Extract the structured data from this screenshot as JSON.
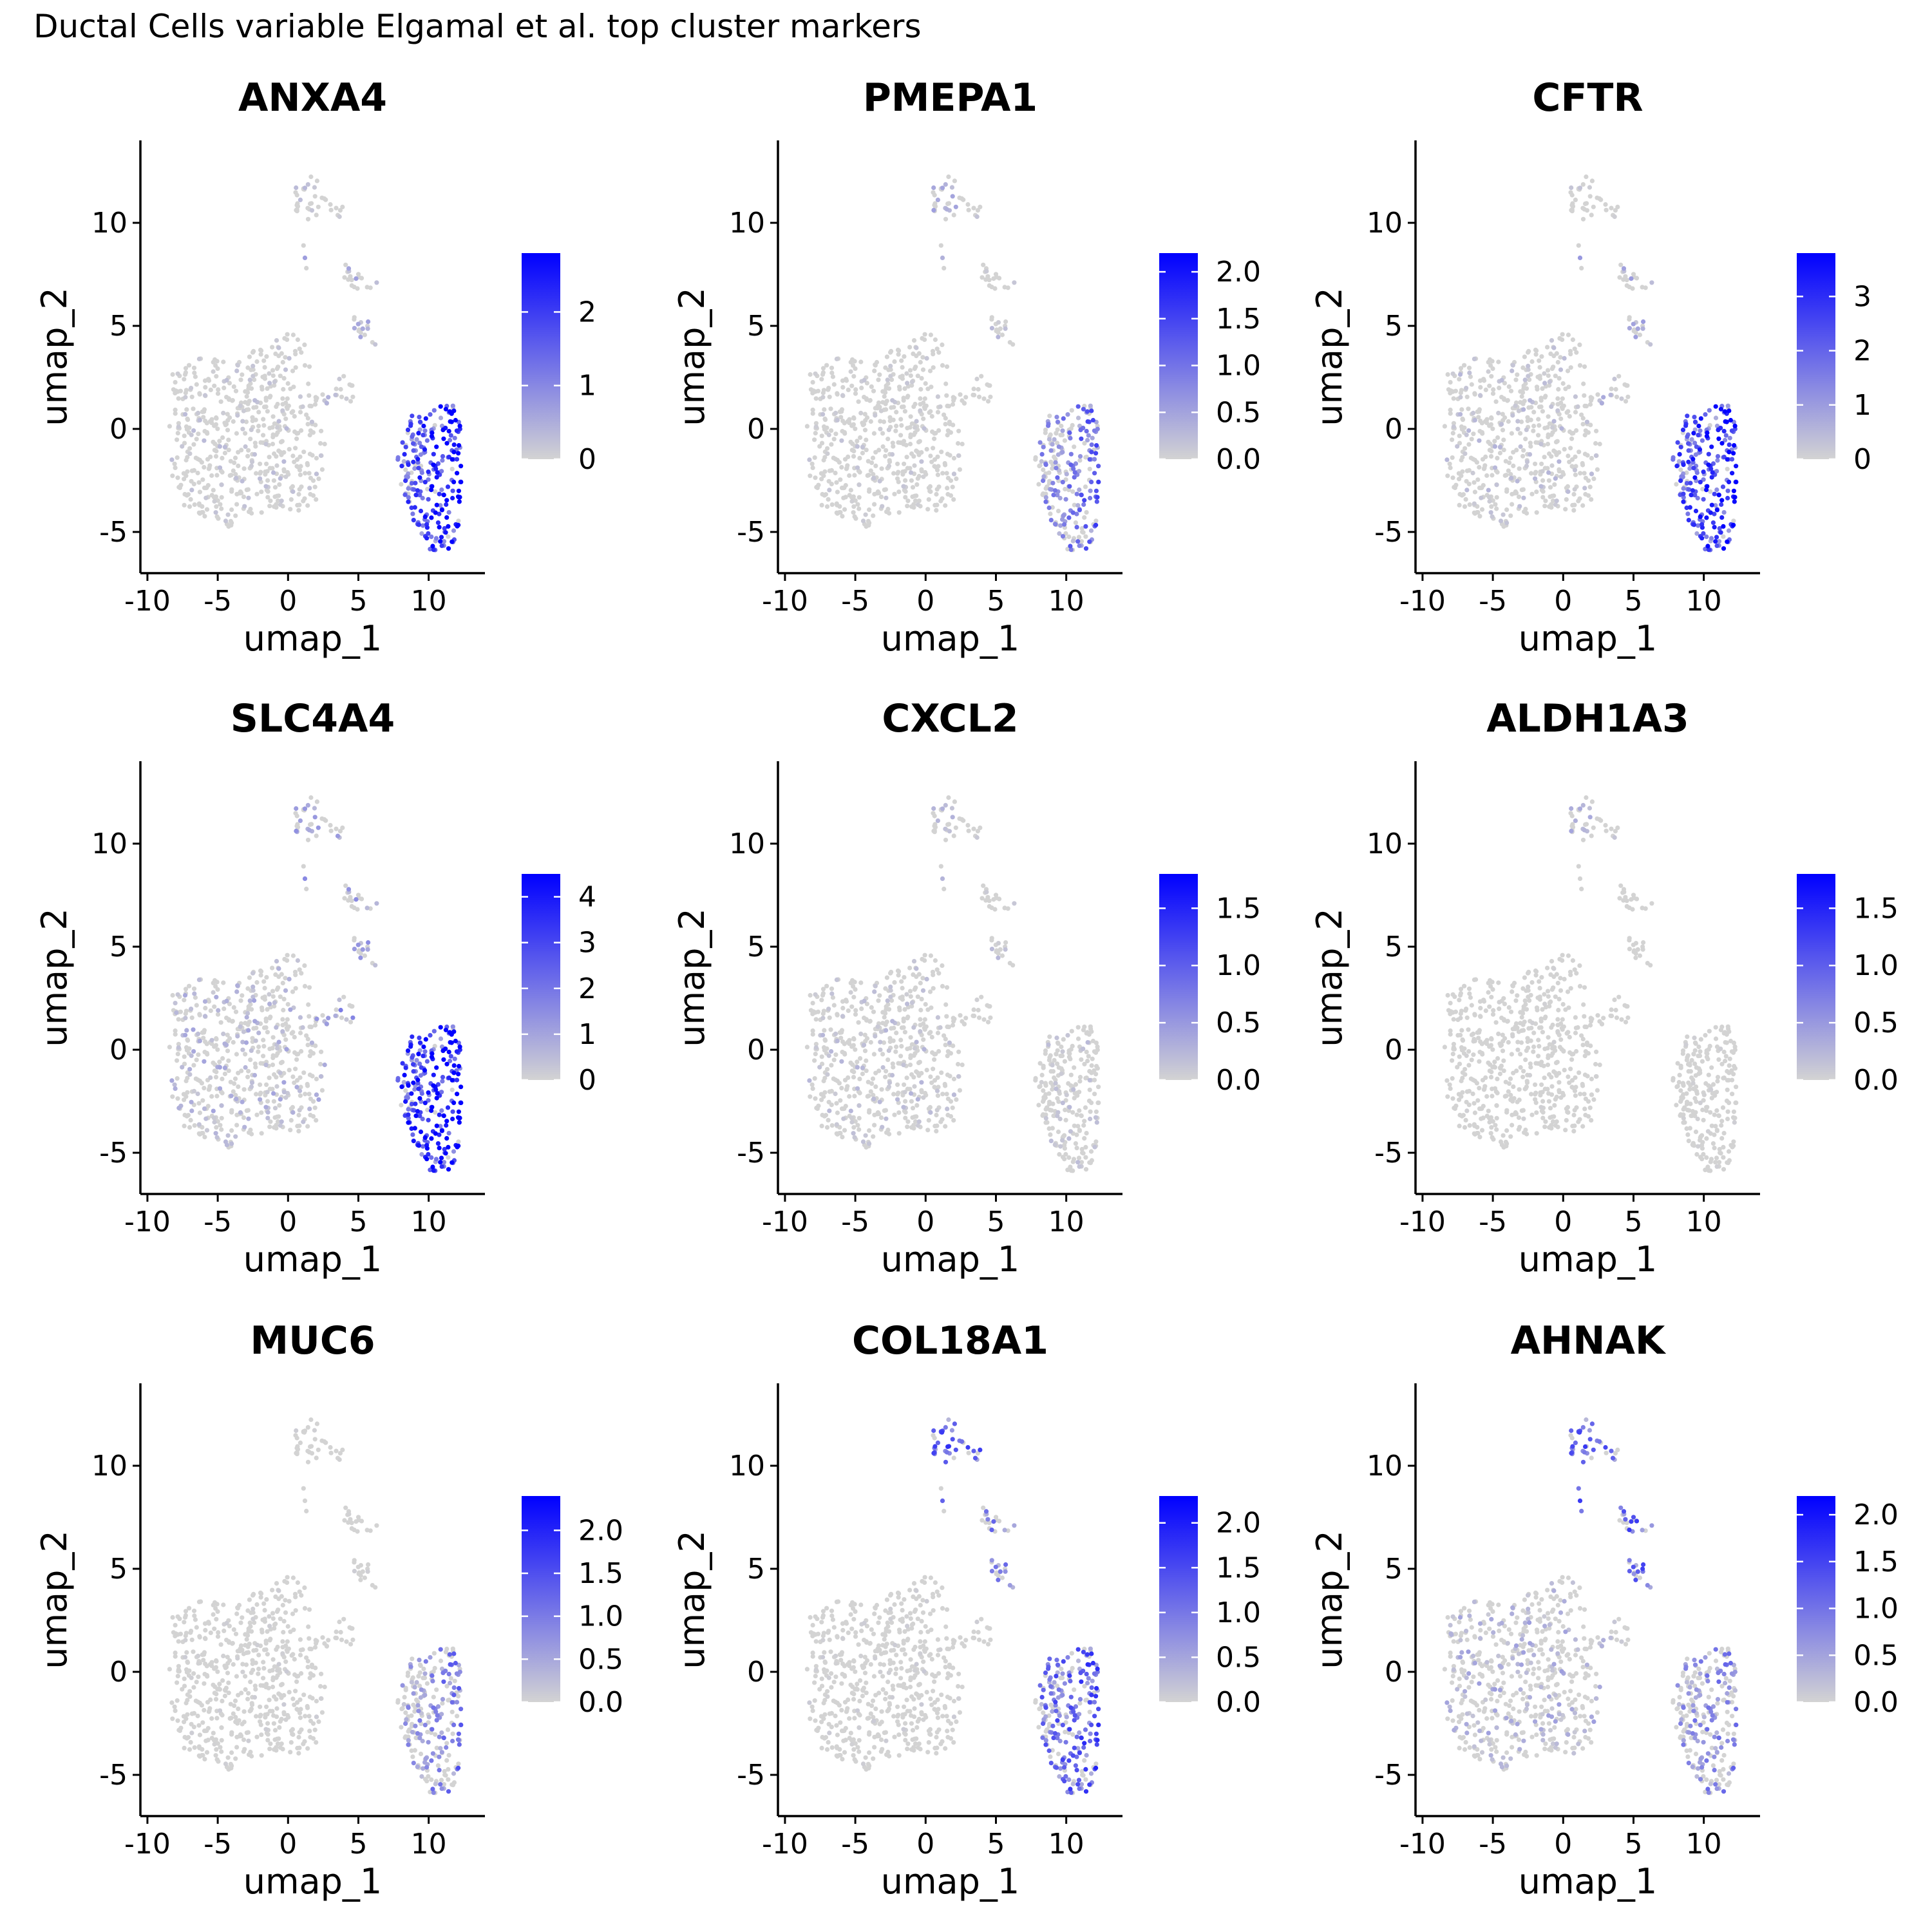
{
  "figure_title": "Ductal Cells variable Elgamal et al. top cluster markers",
  "chart_data": [
    {
      "type": "scatter",
      "title": "ANXA4",
      "xlabel": "umap_1",
      "ylabel": "umap_2",
      "xlim": [
        -10.5,
        14
      ],
      "ylim": [
        -7,
        14
      ],
      "xticks": [
        -10,
        -5,
        0,
        5,
        10
      ],
      "yticks": [
        -5,
        0,
        5,
        10
      ],
      "colorbar": {
        "min": 0,
        "max": 2.8,
        "ticks": [
          "0",
          "1",
          "2"
        ],
        "tickvalues": [
          0,
          1,
          2
        ],
        "low_color": "#d3d3d3",
        "high_color": "#0000ff"
      },
      "pattern": {
        "main": 0.18,
        "stalk": 0.35,
        "top": 0.25,
        "small": 0.4,
        "right": 1.35,
        "right_grad": 1.0
      }
    },
    {
      "type": "scatter",
      "title": "PMEPA1",
      "xlabel": "umap_1",
      "ylabel": "umap_2",
      "xlim": [
        -10.5,
        14
      ],
      "ylim": [
        -7,
        14
      ],
      "xticks": [
        -10,
        -5,
        0,
        5,
        10
      ],
      "yticks": [
        -5,
        0,
        5,
        10
      ],
      "colorbar": {
        "min": 0,
        "max": 2.2,
        "ticks": [
          "0.0",
          "0.5",
          "1.0",
          "1.5",
          "2.0"
        ],
        "tickvalues": [
          0,
          0.5,
          1,
          1.5,
          2
        ],
        "low_color": "#d3d3d3",
        "high_color": "#0000ff"
      },
      "pattern": {
        "main": 0.1,
        "stalk": 0.1,
        "top": 0.35,
        "small": 0.2,
        "right": 0.6,
        "right_grad": 0.3
      }
    },
    {
      "type": "scatter",
      "title": "CFTR",
      "xlabel": "umap_1",
      "ylabel": "umap_2",
      "xlim": [
        -10.5,
        14
      ],
      "ylim": [
        -7,
        14
      ],
      "xticks": [
        -10,
        -5,
        0,
        5,
        10
      ],
      "yticks": [
        -5,
        0,
        5,
        10
      ],
      "colorbar": {
        "min": 0,
        "max": 3.8,
        "ticks": [
          "0",
          "1",
          "2",
          "3"
        ],
        "tickvalues": [
          0,
          1,
          2,
          3
        ],
        "low_color": "#d3d3d3",
        "high_color": "#0000ff"
      },
      "pattern": {
        "main": 0.3,
        "stalk": 0.6,
        "top": 0.2,
        "small": 0.6,
        "right": 1.9,
        "right_grad": 0.6
      }
    },
    {
      "type": "scatter",
      "title": "SLC4A4",
      "xlabel": "umap_1",
      "ylabel": "umap_2",
      "xlim": [
        -10.5,
        14
      ],
      "ylim": [
        -7,
        14
      ],
      "xticks": [
        -10,
        -5,
        0,
        5,
        10
      ],
      "yticks": [
        -5,
        0,
        5,
        10
      ],
      "colorbar": {
        "min": 0,
        "max": 4.5,
        "ticks": [
          "0",
          "1",
          "2",
          "3",
          "4"
        ],
        "tickvalues": [
          0,
          1,
          2,
          3,
          4
        ],
        "low_color": "#d3d3d3",
        "high_color": "#0000ff"
      },
      "pattern": {
        "main": 0.55,
        "stalk": 1.0,
        "top": 0.9,
        "small": 0.9,
        "right": 2.6,
        "right_grad": 1.2
      }
    },
    {
      "type": "scatter",
      "title": "CXCL2",
      "xlabel": "umap_1",
      "ylabel": "umap_2",
      "xlim": [
        -10.5,
        14
      ],
      "ylim": [
        -7,
        14
      ],
      "xticks": [
        -10,
        -5,
        0,
        5,
        10
      ],
      "yticks": [
        -5,
        0,
        5,
        10
      ],
      "colorbar": {
        "min": 0,
        "max": 1.8,
        "ticks": [
          "0.0",
          "0.5",
          "1.0",
          "1.5"
        ],
        "tickvalues": [
          0,
          0.5,
          1,
          1.5
        ],
        "low_color": "#d3d3d3",
        "high_color": "#0000ff"
      },
      "pattern": {
        "main": 0.14,
        "stalk": 0.05,
        "top": 0.2,
        "small": 0.15,
        "right": 0.12,
        "right_grad": 0
      }
    },
    {
      "type": "scatter",
      "title": "ALDH1A3",
      "xlabel": "umap_1",
      "ylabel": "umap_2",
      "xlim": [
        -10.5,
        14
      ],
      "ylim": [
        -7,
        14
      ],
      "xticks": [
        -10,
        -5,
        0,
        5,
        10
      ],
      "yticks": [
        -5,
        0,
        5,
        10
      ],
      "colorbar": {
        "min": 0,
        "max": 1.8,
        "ticks": [
          "0.0",
          "0.5",
          "1.0",
          "1.5"
        ],
        "tickvalues": [
          0,
          0.5,
          1,
          1.5
        ],
        "low_color": "#d3d3d3",
        "high_color": "#0000ff"
      },
      "pattern": {
        "main": 0.02,
        "stalk": 0.0,
        "top": 0.25,
        "small": 0.0,
        "right": 0.03,
        "right_grad": 0
      }
    },
    {
      "type": "scatter",
      "title": "MUC6",
      "xlabel": "umap_1",
      "ylabel": "umap_2",
      "xlim": [
        -10.5,
        14
      ],
      "ylim": [
        -7,
        14
      ],
      "xticks": [
        -10,
        -5,
        0,
        5,
        10
      ],
      "yticks": [
        -5,
        0,
        5,
        10
      ],
      "colorbar": {
        "min": 0,
        "max": 2.4,
        "ticks": [
          "0.0",
          "0.5",
          "1.0",
          "1.5",
          "2.0"
        ],
        "tickvalues": [
          0,
          0.5,
          1,
          1.5,
          2
        ],
        "low_color": "#d3d3d3",
        "high_color": "#0000ff"
      },
      "pattern": {
        "main": 0.05,
        "stalk": 0.0,
        "top": 0.05,
        "small": 0.05,
        "right": 0.55,
        "right_grad": 0.3
      }
    },
    {
      "type": "scatter",
      "title": "COL18A1",
      "xlabel": "umap_1",
      "ylabel": "umap_2",
      "xlim": [
        -10.5,
        14
      ],
      "ylim": [
        -7,
        14
      ],
      "xticks": [
        -10,
        -5,
        0,
        5,
        10
      ],
      "yticks": [
        -5,
        0,
        5,
        10
      ],
      "colorbar": {
        "min": 0,
        "max": 2.3,
        "ticks": [
          "0.0",
          "0.5",
          "1.0",
          "1.5",
          "2.0"
        ],
        "tickvalues": [
          0,
          0.5,
          1,
          1.5,
          2
        ],
        "low_color": "#d3d3d3",
        "high_color": "#0000ff"
      },
      "pattern": {
        "main": 0.06,
        "stalk": 0.15,
        "top": 1.0,
        "small": 0.7,
        "right": 0.85,
        "right_grad": 0.2
      }
    },
    {
      "type": "scatter",
      "title": "AHNAK",
      "xlabel": "umap_1",
      "ylabel": "umap_2",
      "xlim": [
        -10.5,
        14
      ],
      "ylim": [
        -7,
        14
      ],
      "xticks": [
        -10,
        -5,
        0,
        5,
        10
      ],
      "yticks": [
        -5,
        0,
        5,
        10
      ],
      "colorbar": {
        "min": 0,
        "max": 2.2,
        "ticks": [
          "0.0",
          "0.5",
          "1.0",
          "1.5",
          "2.0"
        ],
        "tickvalues": [
          0,
          0.5,
          1,
          1.5,
          2
        ],
        "low_color": "#d3d3d3",
        "high_color": "#0000ff"
      },
      "pattern": {
        "main": 0.3,
        "stalk": 0.3,
        "top": 0.9,
        "small": 0.9,
        "right": 0.55,
        "right_grad": 0.1
      }
    }
  ]
}
